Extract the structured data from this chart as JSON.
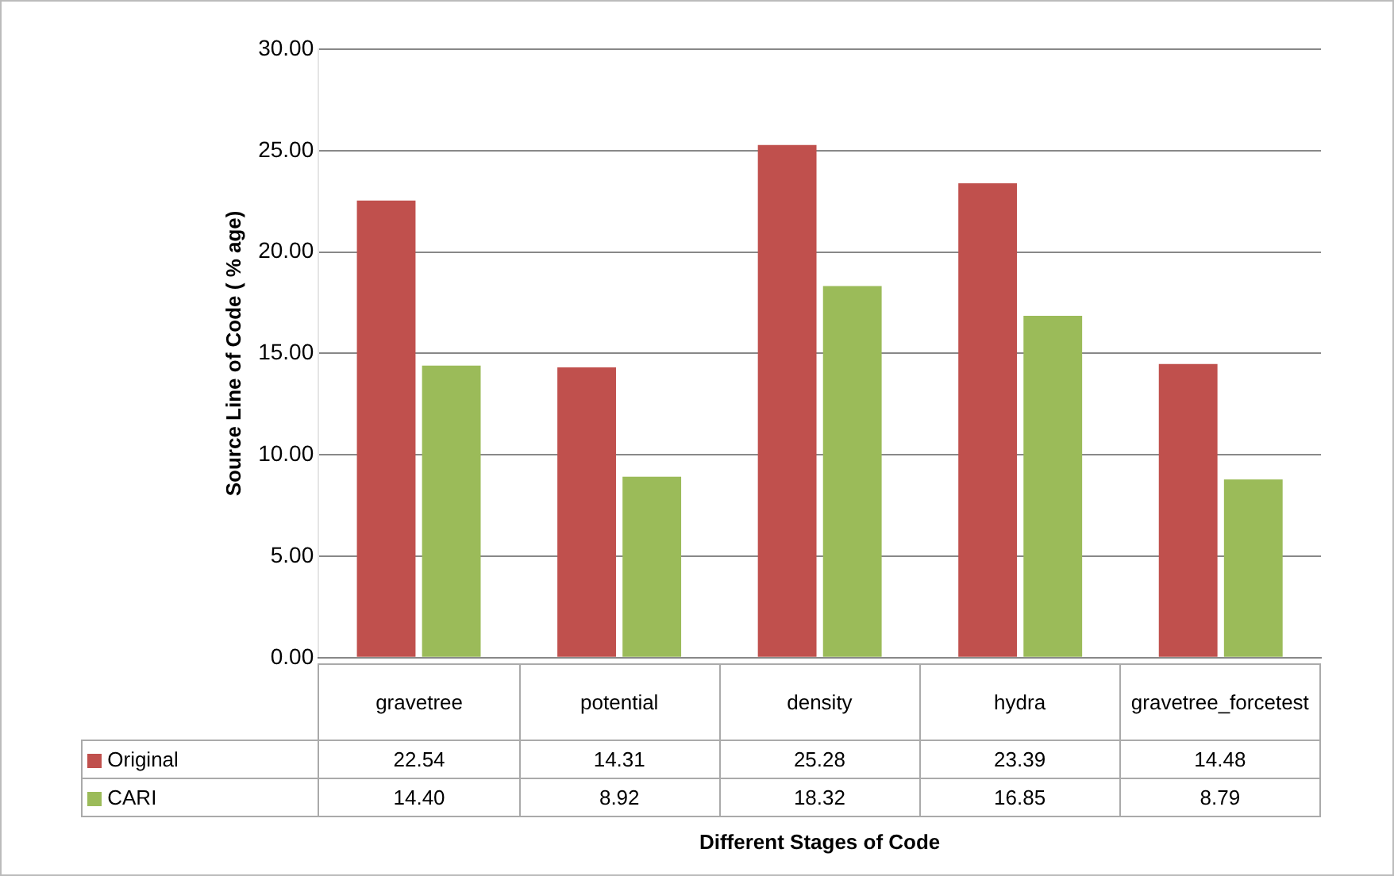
{
  "chart_data": {
    "type": "bar",
    "annotations": [
      "Different Stages of Code"
    ],
    "ylabel": "Source Line of Code ( % age)",
    "categories": [
      "gravetree",
      "potential",
      "density",
      "hydra",
      "gravetree_forcetest"
    ],
    "series": [
      {
        "name": "Original",
        "color": "#c0504d",
        "values": [
          22.54,
          14.31,
          25.28,
          23.39,
          14.48
        ],
        "value_labels": [
          "22.54",
          "14.31",
          "25.28",
          "23.39",
          "14.48"
        ]
      },
      {
        "name": "CARI",
        "color": "#9bbb59",
        "values": [
          14.4,
          8.92,
          18.32,
          16.85,
          8.79
        ],
        "value_labels": [
          "14.40",
          "8.92",
          "18.32",
          "16.85",
          "8.79"
        ]
      }
    ],
    "ylim": [
      0,
      30
    ],
    "yticks": [
      {
        "value": 0,
        "label": "0.00"
      },
      {
        "value": 5,
        "label": "5.00"
      },
      {
        "value": 10,
        "label": "10.00"
      },
      {
        "value": 15,
        "label": "15.00"
      },
      {
        "value": 20,
        "label": "20.00"
      },
      {
        "value": 25,
        "label": "25.00"
      },
      {
        "value": 30,
        "label": "30.00"
      }
    ],
    "grid": "y",
    "legend": "bottom left"
  }
}
